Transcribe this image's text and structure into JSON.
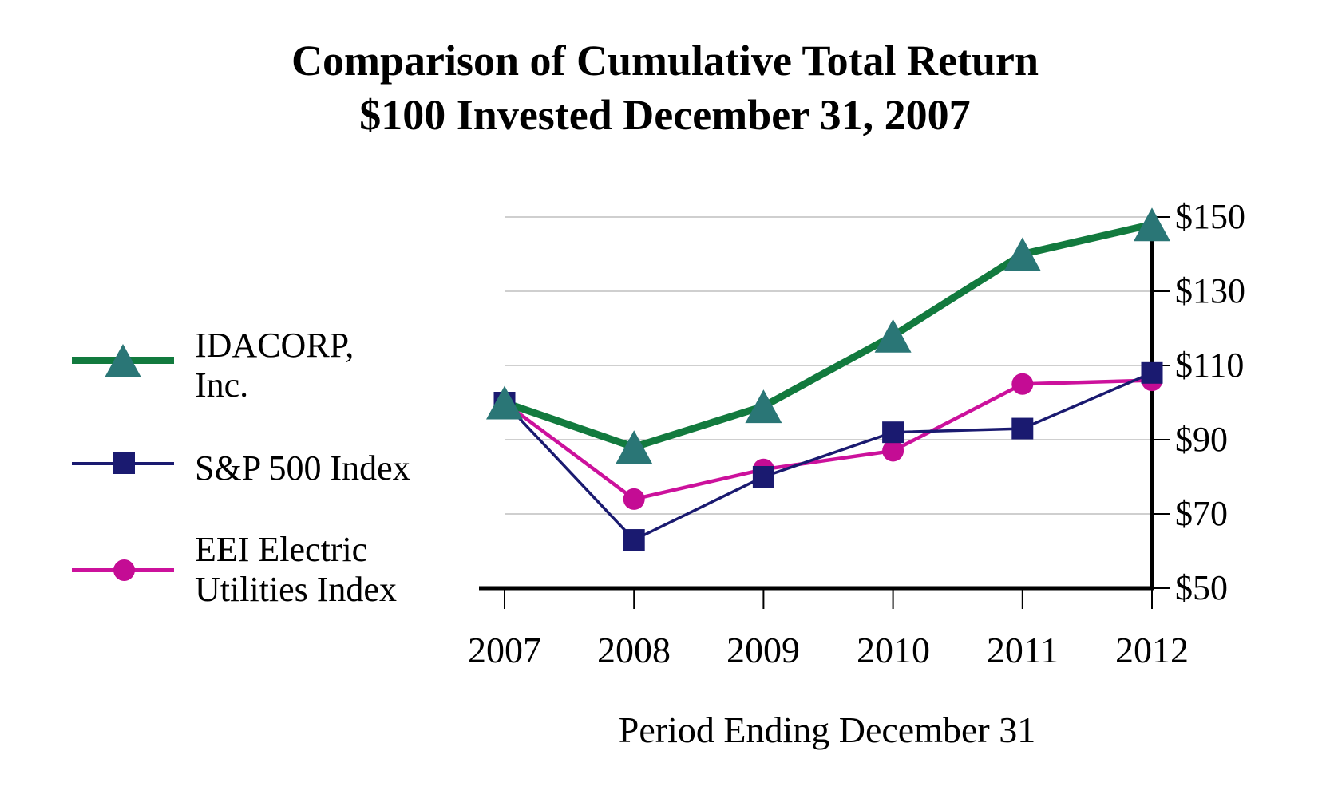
{
  "title": {
    "line1": "Comparison of Cumulative Total Return",
    "line2": "$100 Invested December 31, 2007"
  },
  "chart_data": {
    "type": "line",
    "x": [
      2007,
      2008,
      2009,
      2010,
      2011,
      2012
    ],
    "x_tick_labels": [
      "2007",
      "2008",
      "2009",
      "2010",
      "2011",
      "2012"
    ],
    "xlabel": "Period Ending December 31",
    "ylim": [
      50,
      150
    ],
    "y_ticks": [
      150,
      130,
      110,
      90,
      70,
      50
    ],
    "y_tick_labels": [
      "$150",
      "$130",
      "$110",
      "$90",
      "$70",
      "$50"
    ],
    "grid": "horizontal",
    "legend_position": "left",
    "y_axis_side": "right",
    "series": [
      {
        "name": "IDACORP, Inc.",
        "legend_label_lines": [
          "IDACORP,",
          "Inc."
        ],
        "marker": "triangle",
        "line_color": "#127A3E",
        "marker_color": "#2A7676",
        "line_width": 9,
        "values": [
          100,
          88,
          99,
          118,
          140,
          148
        ]
      },
      {
        "name": "S&P 500 Index",
        "legend_label_lines": [
          "S&P 500 Index",
          ""
        ],
        "marker": "square",
        "line_color": "#1A1A70",
        "marker_color": "#1A1A70",
        "line_width": 3.5,
        "values": [
          100,
          63,
          80,
          92,
          93,
          108
        ]
      },
      {
        "name": "EEI Electric Utilities Index",
        "legend_label_lines": [
          "EEI Electric",
          "Utilities Index"
        ],
        "marker": "circle",
        "line_color": "#CC119C",
        "marker_color": "#C40C94",
        "line_width": 4.5,
        "values": [
          100,
          74,
          82,
          87,
          105,
          106
        ]
      }
    ],
    "gridline_color": "#C8C8C8",
    "axis_color": "#000000"
  }
}
